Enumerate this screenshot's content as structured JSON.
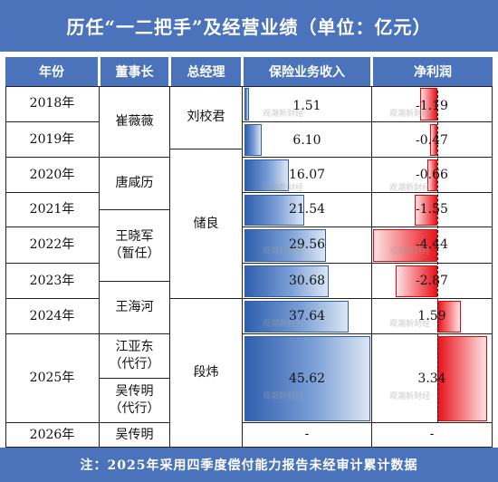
{
  "title": "历任“一二把手”及经营业绩（单位：亿元）",
  "headers": {
    "year": "年份",
    "chairman": "董事长",
    "gm": "总经理",
    "revenue": "保险业务收入",
    "profit": "净利润"
  },
  "years": [
    "2018年",
    "2019年",
    "2020年",
    "2021年",
    "2022年",
    "2023年",
    "2024年",
    "2025年",
    "2026年"
  ],
  "chairmen": {
    "cui": "崔薇薇",
    "tang": "唐咸历",
    "wang": "王晓军\n（暂任）",
    "wanghaihe": "王海河",
    "jiang": "江亚东\n（代行）",
    "wu_acting": "吴传明\n（代行）",
    "wu": "吴传明"
  },
  "gms": {
    "liu": "刘校君",
    "chu": "储良",
    "duan": "段炜"
  },
  "revenue_labels": [
    "1.51",
    "6.10",
    "16.07",
    "21.54",
    "29.56",
    "30.68",
    "37.64",
    "45.62",
    "-"
  ],
  "profit_labels": [
    "-1.19",
    "-0.47",
    "-0.66",
    "-1.55",
    "-4.44",
    "-2.87",
    "1.59",
    "3.34",
    "-"
  ],
  "chart_data": {
    "type": "bar",
    "categories": [
      "2018年",
      "2019年",
      "2020年",
      "2021年",
      "2022年",
      "2023年",
      "2024年",
      "2025年",
      "2026年"
    ],
    "series": [
      {
        "name": "保险业务收入",
        "values": [
          1.51,
          6.1,
          16.07,
          21.54,
          29.56,
          30.68,
          37.64,
          45.62,
          null
        ]
      },
      {
        "name": "净利润",
        "values": [
          -1.19,
          -0.47,
          -0.66,
          -1.55,
          -4.44,
          -2.87,
          1.59,
          3.34,
          null
        ]
      }
    ]
  },
  "watermark": "观潮新财经",
  "footer": "注：2025年采用四季度偿付能力报告未经审计累计数据",
  "colors": {
    "header_bg": "#4a73bc",
    "revenue_bar": "#2f5fae",
    "profit_bar": "#e8131c"
  }
}
